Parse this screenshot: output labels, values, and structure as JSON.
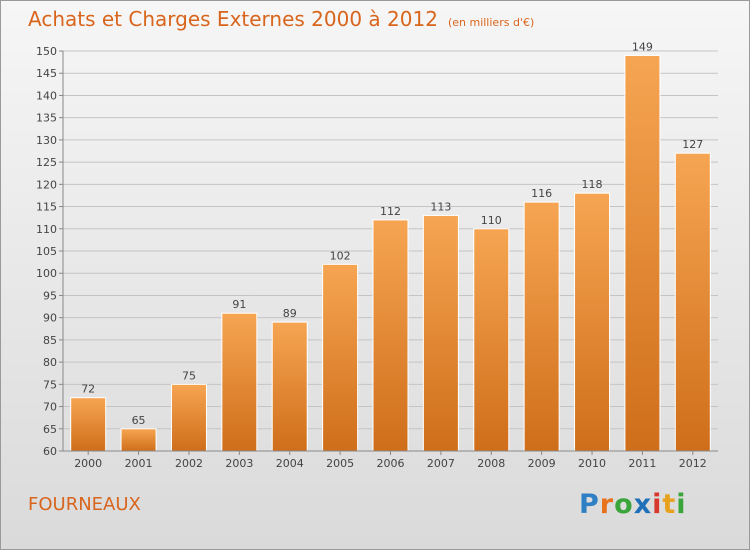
{
  "title": "Achats et Charges Externes 2000 à 2012",
  "subtitle": "(en milliers d'€)",
  "commune": "FOURNEAUX",
  "logo": {
    "letters": [
      "P",
      "r",
      "o",
      "x",
      "i",
      "t",
      "i"
    ],
    "colors": [
      "#2f7fc4",
      "#e8721c",
      "#3aa53a",
      "#1f70b8",
      "#d73a2c",
      "#e8a11c",
      "#3aa53a"
    ]
  },
  "colors": {
    "accent": "#d9651d",
    "bar_top": "#f6a552",
    "bar_bottom": "#cf6e1a"
  },
  "chart_data": {
    "type": "bar",
    "categories": [
      "2000",
      "2001",
      "2002",
      "2003",
      "2004",
      "2005",
      "2006",
      "2007",
      "2008",
      "2009",
      "2010",
      "2011",
      "2012"
    ],
    "values": [
      72,
      65,
      75,
      91,
      89,
      102,
      112,
      113,
      110,
      116,
      118,
      149,
      127
    ],
    "ylim": [
      60,
      150
    ],
    "yticks": [
      60,
      65,
      70,
      75,
      80,
      85,
      90,
      95,
      100,
      105,
      110,
      115,
      120,
      125,
      130,
      135,
      140,
      145,
      150
    ],
    "grid": true
  }
}
